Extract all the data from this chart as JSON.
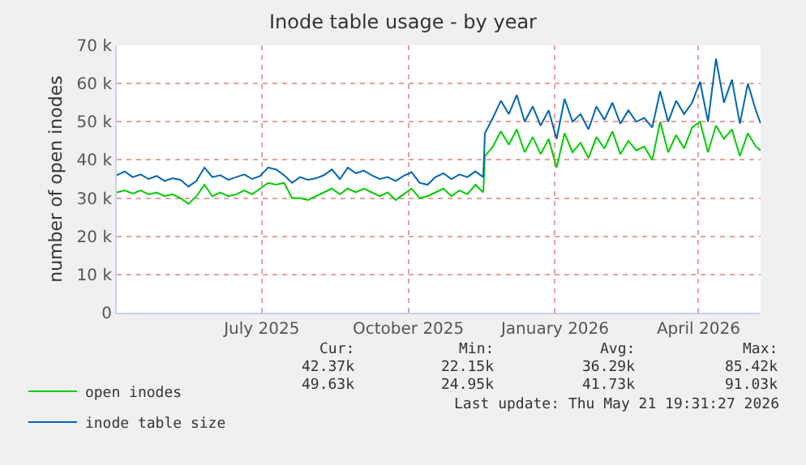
{
  "chart_data": {
    "type": "line",
    "title": "Inode table usage - by year",
    "ylabel": "number of open inodes",
    "x": [
      "2025-04-01",
      "2025-04-06",
      "2025-04-11",
      "2025-04-16",
      "2025-04-21",
      "2025-04-26",
      "2025-05-01",
      "2025-05-06",
      "2025-05-11",
      "2025-05-16",
      "2025-05-21",
      "2025-05-26",
      "2025-05-31",
      "2025-06-05",
      "2025-06-10",
      "2025-06-15",
      "2025-06-20",
      "2025-06-25",
      "2025-06-30",
      "2025-07-05",
      "2025-07-10",
      "2025-07-15",
      "2025-07-20",
      "2025-07-25",
      "2025-07-30",
      "2025-08-04",
      "2025-08-09",
      "2025-08-14",
      "2025-08-19",
      "2025-08-24",
      "2025-08-29",
      "2025-09-03",
      "2025-09-08",
      "2025-09-13",
      "2025-09-18",
      "2025-09-23",
      "2025-09-28",
      "2025-10-03",
      "2025-10-08",
      "2025-10-13",
      "2025-10-18",
      "2025-10-23",
      "2025-10-28",
      "2025-11-02",
      "2025-11-07",
      "2025-11-12",
      "2025-11-17",
      "2025-11-18",
      "2025-11-23",
      "2025-11-28",
      "2025-12-03",
      "2025-12-08",
      "2025-12-13",
      "2025-12-18",
      "2025-12-23",
      "2025-12-28",
      "2026-01-02",
      "2026-01-07",
      "2026-01-12",
      "2026-01-17",
      "2026-01-22",
      "2026-01-27",
      "2026-02-01",
      "2026-02-06",
      "2026-02-11",
      "2026-02-16",
      "2026-02-21",
      "2026-02-26",
      "2026-03-03",
      "2026-03-08",
      "2026-03-13",
      "2026-03-18",
      "2026-03-23",
      "2026-03-28",
      "2026-04-02",
      "2026-04-07",
      "2026-04-12",
      "2026-04-17",
      "2026-04-22",
      "2026-04-27",
      "2026-05-02",
      "2026-05-07",
      "2026-05-10"
    ],
    "series": [
      {
        "name": "open inodes",
        "color": "#00cc00",
        "values": [
          31500,
          32000,
          31200,
          32000,
          31000,
          31500,
          30500,
          31000,
          30000,
          28500,
          30500,
          33500,
          30500,
          31500,
          30500,
          31000,
          32000,
          31000,
          32500,
          34000,
          33500,
          34000,
          30000,
          30000,
          29500,
          30500,
          31500,
          32500,
          31000,
          32500,
          31500,
          32500,
          31500,
          30500,
          31500,
          29500,
          31000,
          32500,
          30000,
          30500,
          31500,
          32500,
          30500,
          32000,
          31000,
          33500,
          31500,
          41000,
          43500,
          47500,
          44000,
          48000,
          42000,
          46000,
          41500,
          45500,
          38000,
          47000,
          42000,
          44500,
          40500,
          46000,
          43000,
          47500,
          41500,
          45000,
          42500,
          43500,
          40000,
          50000,
          42000,
          46500,
          43000,
          48500,
          50000,
          42000,
          49000,
          45500,
          48000,
          41000,
          47000,
          43500,
          42500
        ]
      },
      {
        "name": "inode table size",
        "color": "#0066b3",
        "values": [
          36000,
          37000,
          35500,
          36200,
          35000,
          35800,
          34500,
          35200,
          34800,
          33000,
          34500,
          38000,
          35500,
          36000,
          34800,
          35500,
          36200,
          35000,
          35800,
          38000,
          37500,
          36000,
          34000,
          35500,
          34800,
          35200,
          36000,
          37500,
          35000,
          38000,
          36500,
          37200,
          36000,
          35000,
          35500,
          34500,
          35800,
          36800,
          34000,
          33500,
          35500,
          36500,
          35000,
          36200,
          35500,
          37000,
          35500,
          47000,
          51000,
          55500,
          52000,
          57000,
          50000,
          54000,
          49000,
          53000,
          45500,
          56000,
          50000,
          52000,
          48000,
          54000,
          50500,
          55000,
          49500,
          53000,
          50000,
          51000,
          48500,
          58000,
          50000,
          55500,
          52000,
          55000,
          60500,
          50000,
          66500,
          55000,
          61000,
          49500,
          60000,
          53000,
          49600
        ]
      }
    ],
    "xlim": [
      "2025-04-01",
      "2026-05-10"
    ],
    "xticks": [
      {
        "value": "2025-07-01",
        "label": "July 2025"
      },
      {
        "value": "2025-10-01",
        "label": "October 2025"
      },
      {
        "value": "2026-01-01",
        "label": "January 2026"
      },
      {
        "value": "2026-04-01",
        "label": "April 2026"
      }
    ],
    "ylim": [
      0,
      70000
    ],
    "yticks": [
      0,
      {
        "value": 10000,
        "label": "10 k"
      },
      {
        "value": 20000,
        "label": "20 k"
      },
      {
        "value": 30000,
        "label": "30 k"
      },
      {
        "value": 40000,
        "label": "40 k"
      },
      {
        "value": 50000,
        "label": "50 k"
      },
      {
        "value": 60000,
        "label": "60 k"
      },
      {
        "value": 70000,
        "label": "70 k"
      }
    ],
    "grid": true,
    "legend": "bottom",
    "marker": "none",
    "line_style": "solid",
    "annotations": [
      "Cur:",
      "Min:",
      "Avg:",
      "Max:",
      "42.37k",
      "22.15k",
      "36.29k",
      "85.42k",
      "49.63k",
      "24.95k",
      "41.73k",
      "91.03k",
      "Last update: Thu May 21 19:31:27 2026"
    ]
  }
}
